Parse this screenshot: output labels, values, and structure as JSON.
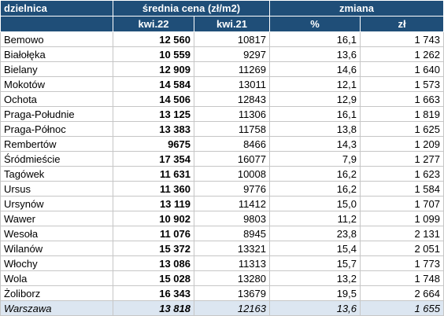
{
  "header": {
    "district": "dzielnica",
    "avg_price": "średnia cena (zł/m2)",
    "change": "zmiana",
    "kwi22": "kwi.22",
    "kwi21": "kwi.21",
    "pct": "%",
    "zl": "zł"
  },
  "rows": [
    {
      "name": "Bemowo",
      "kwi22": "12 560",
      "kwi21": "10817",
      "pct": "16,1",
      "zl": "1 743"
    },
    {
      "name": "Białołęka",
      "kwi22": "10 559",
      "kwi21": "9297",
      "pct": "13,6",
      "zl": "1 262"
    },
    {
      "name": "Bielany",
      "kwi22": "12 909",
      "kwi21": "11269",
      "pct": "14,6",
      "zl": "1 640"
    },
    {
      "name": "Mokotów",
      "kwi22": "14 584",
      "kwi21": "13011",
      "pct": "12,1",
      "zl": "1 573"
    },
    {
      "name": "Ochota",
      "kwi22": "14 506",
      "kwi21": "12843",
      "pct": "12,9",
      "zl": "1 663"
    },
    {
      "name": "Praga-Południe",
      "kwi22": "13 125",
      "kwi21": "11306",
      "pct": "16,1",
      "zl": "1 819"
    },
    {
      "name": "Praga-Północ",
      "kwi22": "13 383",
      "kwi21": "11758",
      "pct": "13,8",
      "zl": "1 625"
    },
    {
      "name": "Rembertów",
      "kwi22": "9675",
      "kwi21": "8466",
      "pct": "14,3",
      "zl": "1 209"
    },
    {
      "name": "Śródmieście",
      "kwi22": "17 354",
      "kwi21": "16077",
      "pct": "7,9",
      "zl": "1 277"
    },
    {
      "name": "Tagówek",
      "kwi22": "11 631",
      "kwi21": "10008",
      "pct": "16,2",
      "zl": "1 623"
    },
    {
      "name": "Ursus",
      "kwi22": "11 360",
      "kwi21": "9776",
      "pct": "16,2",
      "zl": "1 584"
    },
    {
      "name": "Ursynów",
      "kwi22": "13 119",
      "kwi21": "11412",
      "pct": "15,0",
      "zl": "1 707"
    },
    {
      "name": "Wawer",
      "kwi22": "10 902",
      "kwi21": "9803",
      "pct": "11,2",
      "zl": "1 099"
    },
    {
      "name": "Wesoła",
      "kwi22": "11 076",
      "kwi21": "8945",
      "pct": "23,8",
      "zl": "2 131"
    },
    {
      "name": "Wilanów",
      "kwi22": "15 372",
      "kwi21": "13321",
      "pct": "15,4",
      "zl": "2 051"
    },
    {
      "name": "Włochy",
      "kwi22": "13 086",
      "kwi21": "11313",
      "pct": "15,7",
      "zl": "1 773"
    },
    {
      "name": "Wola",
      "kwi22": "15 028",
      "kwi21": "13280",
      "pct": "13,2",
      "zl": "1 748"
    },
    {
      "name": "Żoliborz",
      "kwi22": "16 343",
      "kwi21": "13679",
      "pct": "19,5",
      "zl": "2 664"
    }
  ],
  "total": {
    "name": "Warszawa",
    "kwi22": "13 818",
    "kwi21": "12163",
    "pct": "13,6",
    "zl": "1 655"
  },
  "colors": {
    "header_bg": "#1f4e78",
    "header_text": "#ffffff",
    "total_bg": "#dce6f1"
  }
}
